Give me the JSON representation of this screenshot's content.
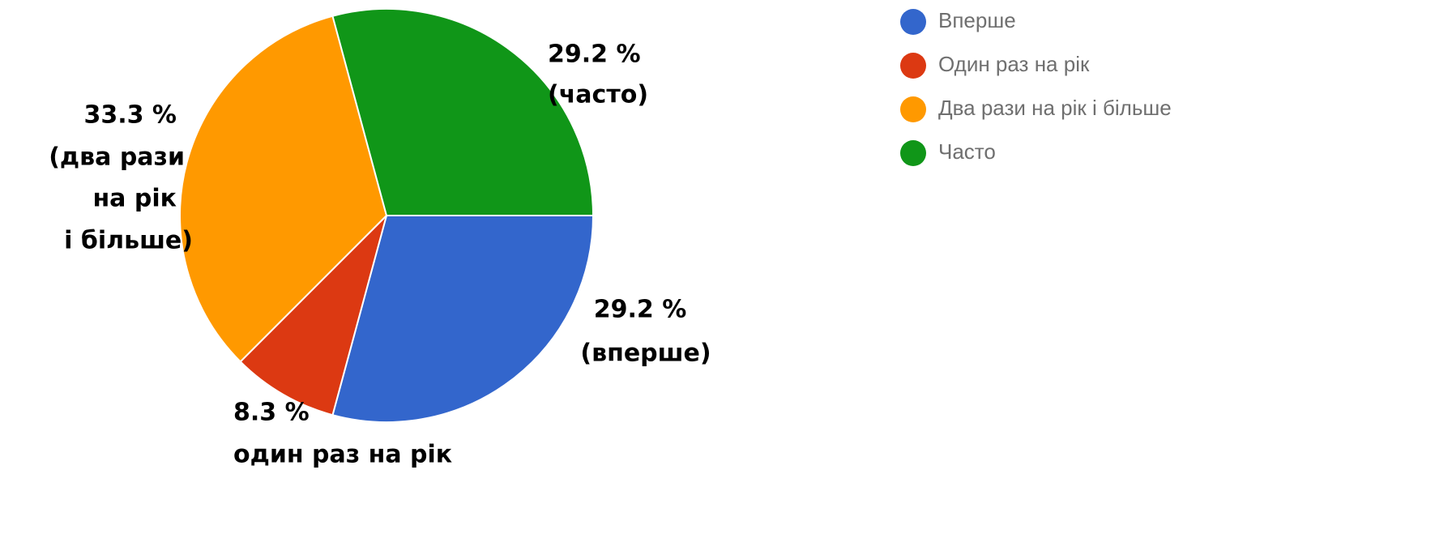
{
  "chart_data": {
    "type": "pie",
    "categories": [
      "Вперше",
      "Один раз на рік",
      "Два рази на рік і більше",
      "Часто"
    ],
    "values": [
      29.2,
      8.3,
      33.3,
      29.2
    ],
    "value_labels": [
      "29.2 %",
      "8.3 %",
      "33.3 %",
      "29.2 %"
    ],
    "label_captions": [
      [
        "(вперше)"
      ],
      [
        "один раз на рік"
      ],
      [
        "(два рази",
        "на рік",
        "і більше)"
      ],
      [
        "(часто)"
      ]
    ],
    "colors": [
      "#3366cc",
      "#dc3912",
      "#ff9900",
      "#109618"
    ],
    "legend": "right"
  }
}
